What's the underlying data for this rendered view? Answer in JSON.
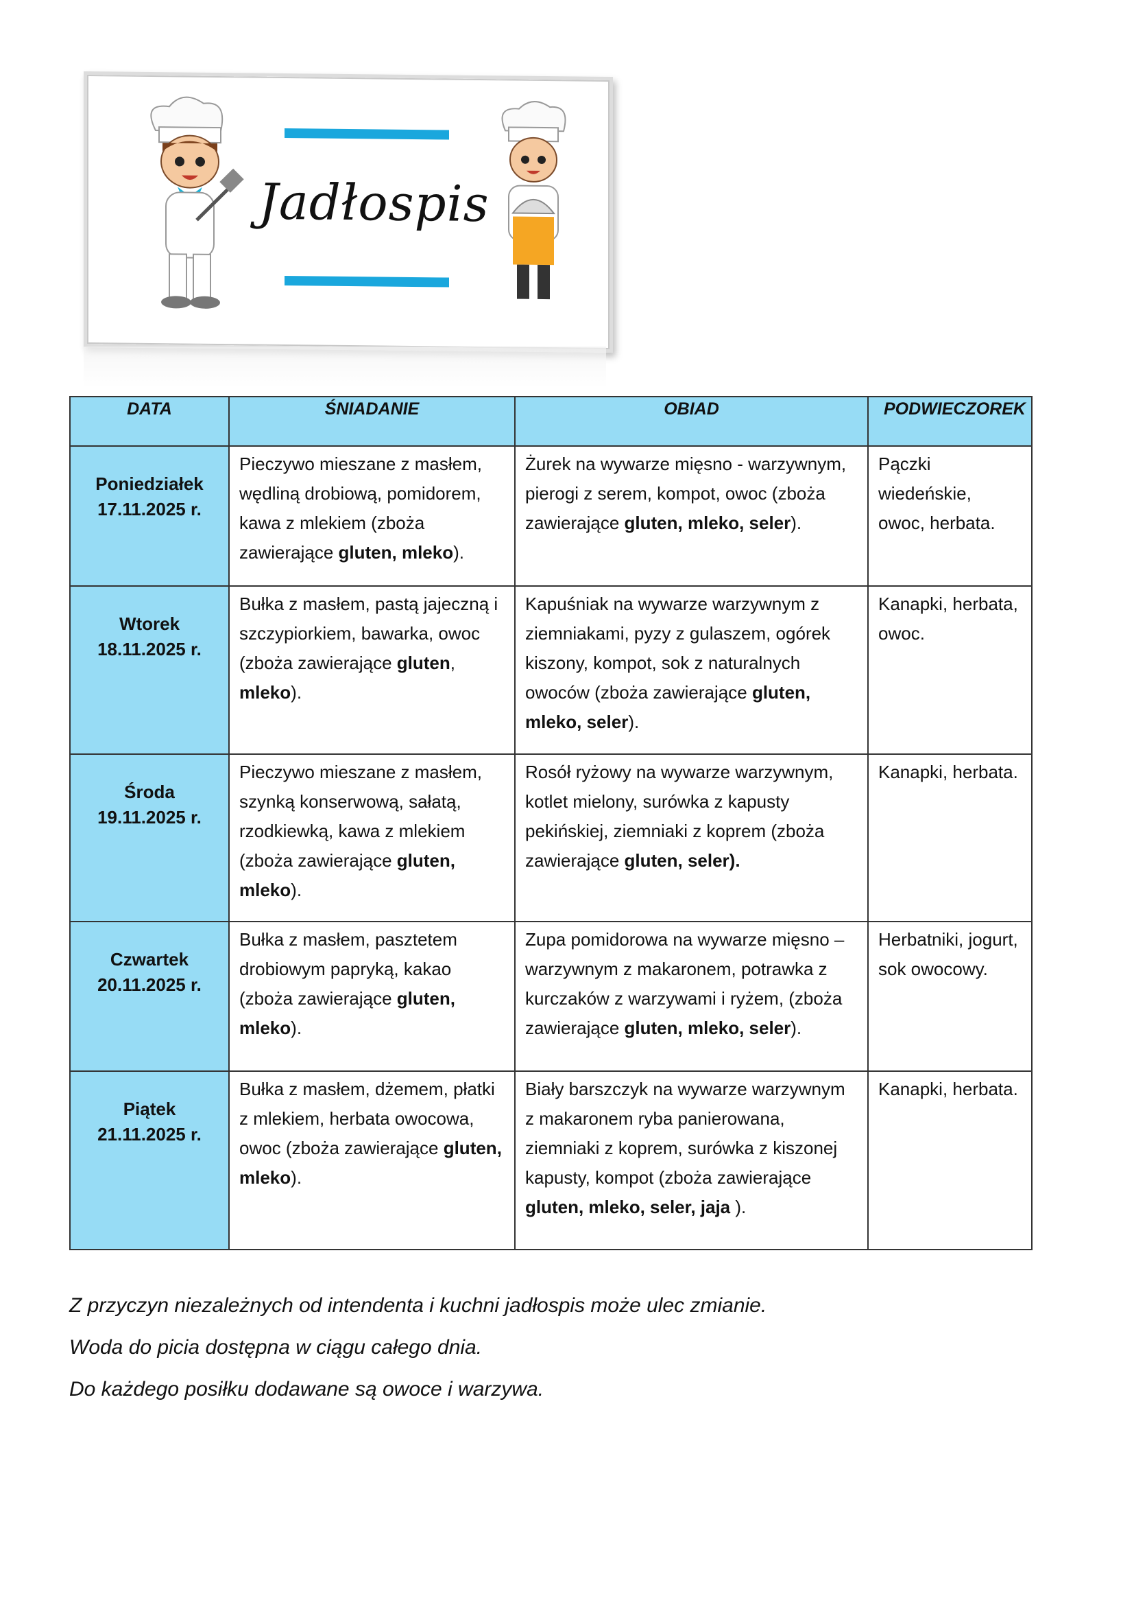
{
  "banner": {
    "title": "Jadłospis"
  },
  "colors": {
    "header_bg": "#97dcf5",
    "banner_bar": "#1aa7dd"
  },
  "table": {
    "headers": [
      "DATA",
      "ŚNIADANIE",
      "OBIAD",
      "PODWIECZOREK"
    ],
    "rows": [
      {
        "day": "Poniedziałek",
        "date": "17.11.2025 r.",
        "breakfast": [
          {
            "t": "Pieczywo mieszane z masłem, wędliną drobiową, pomidorem, kawa z mlekiem (zboża zawierające "
          },
          {
            "t": "gluten, mleko",
            "b": true
          },
          {
            "t": ")."
          }
        ],
        "lunch": [
          {
            "t": "Żurek na wywarze mięsno - warzywnym, pierogi z serem, kompot, owoc (zboża zawierające "
          },
          {
            "t": "gluten, mleko, seler",
            "b": true
          },
          {
            "t": ")."
          }
        ],
        "snack": [
          {
            "t": "Pączki wiedeńskie, owoc, herbata."
          }
        ]
      },
      {
        "day": "Wtorek",
        "date": "18.11.2025 r.",
        "breakfast": [
          {
            "t": "Bułka z masłem, pastą jajeczną i szczypiorkiem, bawarka, owoc (zboża zawierające "
          },
          {
            "t": "gluten",
            "b": true
          },
          {
            "t": ", "
          },
          {
            "t": "mleko",
            "b": true
          },
          {
            "t": ")."
          }
        ],
        "lunch": [
          {
            "t": "Kapuśniak na wywarze warzywnym z ziemniakami, pyzy z gulaszem, ogórek kiszony, kompot, sok z naturalnych owoców (zboża zawierające "
          },
          {
            "t": "gluten, mleko, seler",
            "b": true
          },
          {
            "t": ")."
          }
        ],
        "snack": [
          {
            "t": "Kanapki, herbata, owoc."
          }
        ]
      },
      {
        "day": "Środa",
        "date": "19.11.2025 r.",
        "breakfast": [
          {
            "t": "Pieczywo mieszane z masłem, szynką konserwową, sałatą, rzodkiewką, kawa z mlekiem (zboża zawierające "
          },
          {
            "t": "gluten, mleko",
            "b": true
          },
          {
            "t": ")."
          }
        ],
        "lunch": [
          {
            "t": "Rosół ryżowy na wywarze warzywnym, kotlet mielony, surówka z kapusty pekińskiej, ziemniaki z koprem (zboża zawierające "
          },
          {
            "t": "gluten, seler).",
            "b": true
          }
        ],
        "snack": [
          {
            "t": "Kanapki, herbata."
          }
        ]
      },
      {
        "day": "Czwartek",
        "date": "20.11.2025 r.",
        "breakfast": [
          {
            "t": "Bułka z masłem, pasztetem drobiowym papryką, kakao (zboża zawierające "
          },
          {
            "t": "gluten, mleko",
            "b": true
          },
          {
            "t": ")."
          }
        ],
        "lunch": [
          {
            "t": "Zupa pomidorowa na wywarze mięsno –warzywnym z makaronem, potrawka z kurczaków z warzywami i ryżem, (zboża zawierające "
          },
          {
            "t": "gluten, mleko, seler",
            "b": true
          },
          {
            "t": ")."
          }
        ],
        "snack": [
          {
            "t": "Herbatniki, jogurt, sok owocowy."
          }
        ]
      },
      {
        "day": "Piątek",
        "date": "21.11.2025 r.",
        "breakfast": [
          {
            "t": "Bułka z masłem, dżemem, płatki z mlekiem, herbata owocowa, owoc (zboża zawierające "
          },
          {
            "t": "gluten, mleko",
            "b": true
          },
          {
            "t": ")."
          }
        ],
        "lunch": [
          {
            "t": "Biały barszczyk na wywarze warzywnym z makaronem ryba panierowana, ziemniaki z koprem, surówka z kiszonej kapusty, kompot (zboża zawierające "
          },
          {
            "t": "gluten, mleko, seler, jaja",
            "b": true
          },
          {
            "t": " )."
          }
        ],
        "snack": [
          {
            "t": "Kanapki, herbata."
          }
        ]
      }
    ]
  },
  "notes": [
    "Z przyczyn niezależnych od intendenta i kuchni jadłospis może ulec zmianie.",
    "Woda do picia dostępna w ciągu całego dnia.",
    "Do każdego posiłku dodawane są owoce i warzywa."
  ]
}
